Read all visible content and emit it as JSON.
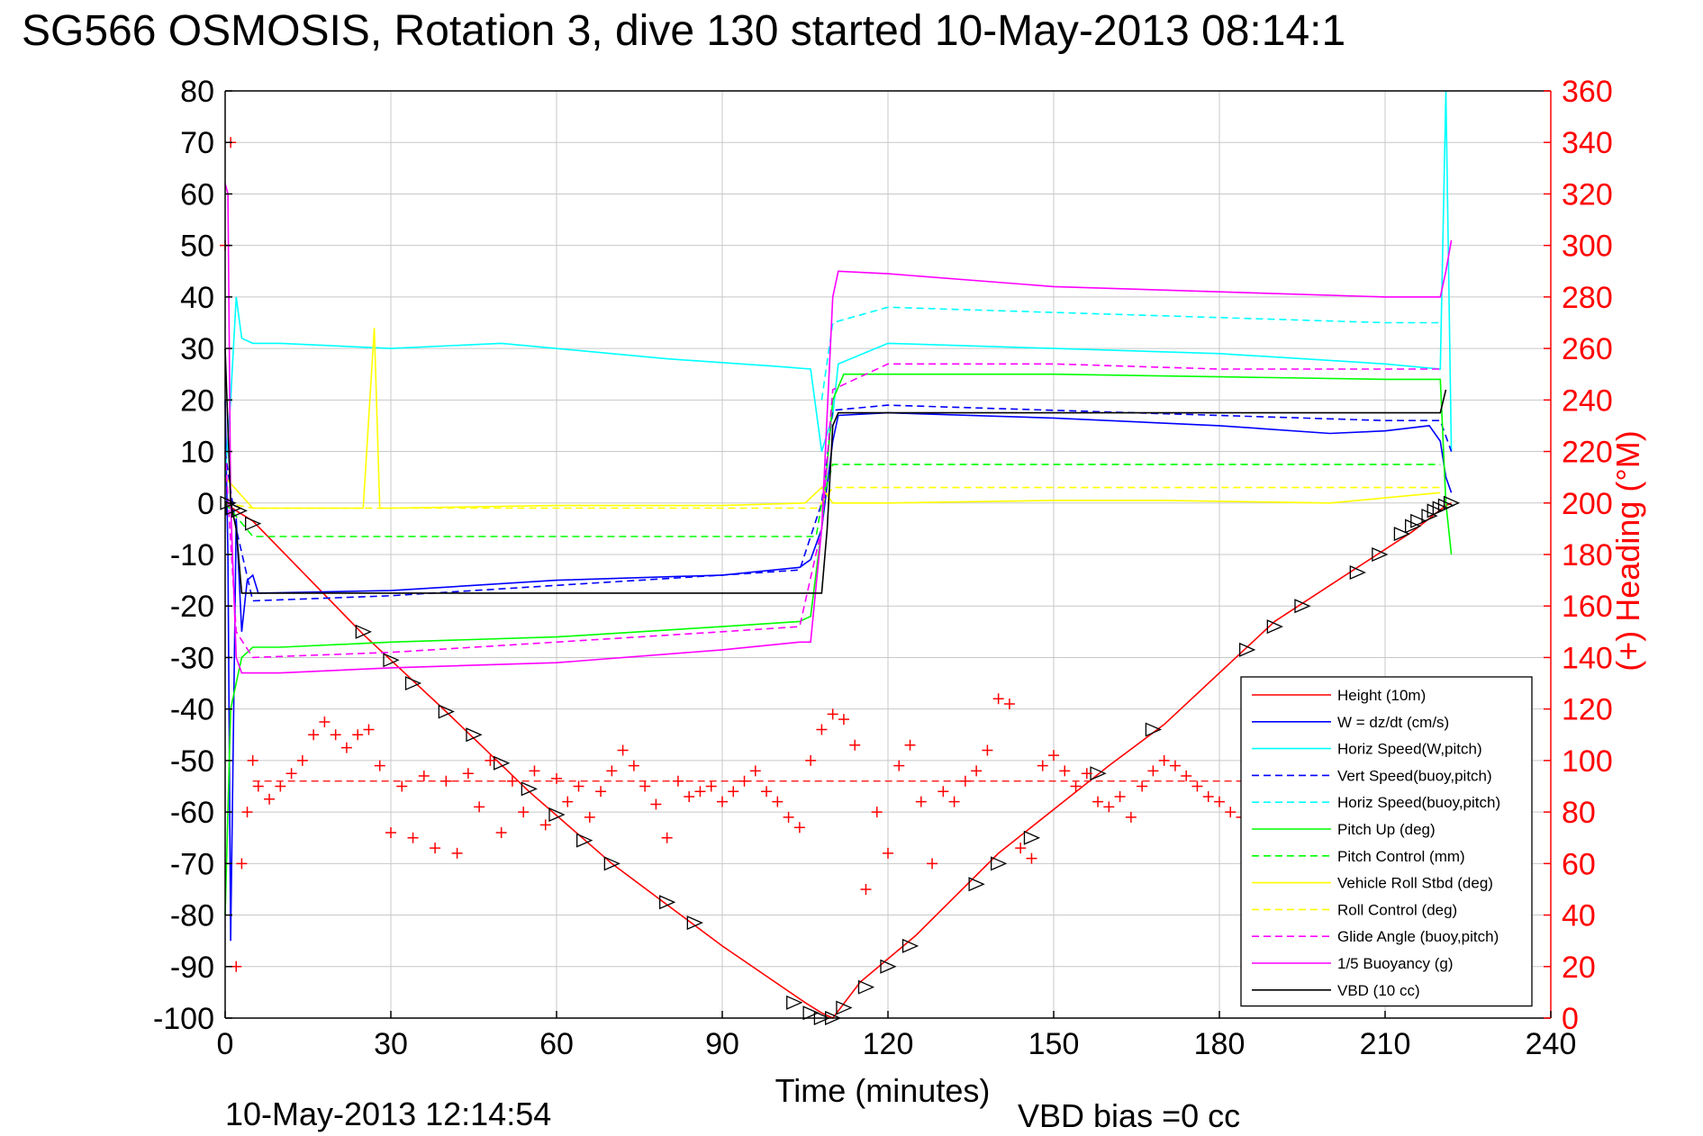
{
  "figure": {
    "title": "SG566 OSMOSIS, Rotation 3, dive 130 started 10-May-2013 08:14:1",
    "xlabel": "Time (minutes)",
    "ylabel_right": "(+) Heading (°M)",
    "footer_date": "10-May-2013 12:14:54",
    "footer_bias": "VBD bias =0 cc"
  },
  "chart_data": {
    "type": "line",
    "xlim": [
      0,
      240
    ],
    "ylim_left": [
      -100,
      80
    ],
    "ylim_right": [
      0,
      360
    ],
    "x_ticks": [
      "0",
      "30",
      "60",
      "90",
      "120",
      "150",
      "180",
      "210",
      "240"
    ],
    "y_ticks_left": [
      "80",
      "70",
      "60",
      "50",
      "40",
      "30",
      "20",
      "10",
      "0",
      "-10",
      "-20",
      "-30",
      "-40",
      "-50",
      "-60",
      "-70",
      "-80",
      "-90",
      "-100"
    ],
    "y_ticks_right": [
      "360",
      "340",
      "320",
      "300",
      "280",
      "260",
      "240",
      "220",
      "200",
      "180",
      "160",
      "140",
      "120",
      "100",
      "80",
      "60",
      "40",
      "20",
      "0"
    ],
    "grid": true,
    "legend_position": "bottom-right",
    "series": [
      {
        "name": "Height (10m)",
        "color": "#ff0000",
        "dash": "solid",
        "x": [
          0,
          2,
          5,
          25,
          30,
          40,
          55,
          70,
          90,
          105,
          108,
          110,
          115,
          125,
          140,
          160,
          170,
          190,
          205,
          215,
          221,
          222
        ],
        "y": [
          0,
          -1.5,
          -3.5,
          -25.5,
          -30.5,
          -40.5,
          -56,
          -70,
          -86,
          -97,
          -99,
          -100,
          -93,
          -84,
          -68,
          -51,
          -43,
          -23,
          -12.5,
          -5.5,
          -0.5,
          0
        ]
      },
      {
        "name": "W = dz/dt (cm/s)",
        "color": "#0000ff",
        "dash": "solid",
        "x": [
          0,
          0.5,
          1,
          2,
          3,
          4,
          5,
          6,
          30,
          60,
          90,
          104,
          106,
          108,
          110,
          111,
          120,
          150,
          180,
          200,
          210,
          218,
          220,
          221,
          222
        ],
        "y": [
          20,
          -10,
          -85,
          -3,
          -25,
          -15,
          -14,
          -17.5,
          -17,
          -15,
          -14,
          -12.5,
          -11,
          -5,
          12,
          17,
          17.5,
          16.5,
          15,
          13.5,
          14,
          15,
          12,
          5,
          2
        ]
      },
      {
        "name": "Horiz Speed(W,pitch)",
        "color": "#00ffff",
        "dash": "solid",
        "x": [
          0,
          1,
          2,
          3,
          5,
          10,
          30,
          50,
          80,
          100,
          106,
          108,
          110,
          111,
          120,
          150,
          180,
          210,
          220,
          221,
          222
        ],
        "y": [
          5,
          20,
          40,
          32,
          31,
          31,
          30,
          31,
          28,
          26.5,
          26,
          10,
          17,
          27,
          31,
          30,
          29,
          27,
          26,
          80,
          10
        ]
      },
      {
        "name": "Vert Speed(buoy,pitch)",
        "color": "#0000ff",
        "dash": "dash",
        "x": [
          0,
          2,
          5,
          30,
          60,
          90,
          104,
          108,
          110,
          120,
          150,
          180,
          210,
          220,
          222
        ],
        "y": [
          10,
          -5,
          -19,
          -18,
          -16,
          -14,
          -13,
          0,
          18,
          19,
          18,
          17,
          16,
          16,
          10
        ]
      },
      {
        "name": "Horiz Speed(buoy,pitch)",
        "color": "#00ffff",
        "dash": "dash",
        "x": [
          108,
          110,
          120,
          150,
          180,
          210,
          220
        ],
        "y": [
          20,
          35,
          38,
          37,
          36,
          35,
          35
        ]
      },
      {
        "name": "Pitch Up (deg)",
        "color": "#00ff00",
        "dash": "solid",
        "x": [
          0,
          1,
          3,
          5,
          10,
          30,
          60,
          90,
          104,
          106,
          108,
          110,
          112,
          120,
          150,
          180,
          210,
          220,
          221,
          222
        ],
        "y": [
          -80,
          -40,
          -30,
          -28,
          -28,
          -27,
          -26,
          -24,
          -23,
          -22,
          -5,
          20,
          25,
          25,
          25,
          24.5,
          24,
          24,
          0,
          -10
        ]
      },
      {
        "name": "Pitch Control (mm)",
        "color": "#00ff00",
        "dash": "dash",
        "x": [
          0,
          5,
          107,
          108,
          110,
          220
        ],
        "y": [
          0,
          -6.5,
          -6.5,
          0,
          7.5,
          7.5
        ]
      },
      {
        "name": "Vehicle Roll Stbd (deg)",
        "color": "#ffff00",
        "dash": "solid",
        "x": [
          0,
          5,
          25,
          27,
          28,
          30,
          60,
          90,
          105,
          108,
          110,
          112,
          120,
          150,
          170,
          200,
          210,
          220
        ],
        "y": [
          5,
          -1,
          -1,
          34,
          -1,
          -1,
          -0.5,
          -0.5,
          0,
          3,
          0,
          0,
          0,
          0.5,
          0.5,
          0,
          1,
          2
        ]
      },
      {
        "name": "Roll Control (deg)",
        "color": "#ffff00",
        "dash": "dash",
        "x": [
          0,
          5,
          107,
          108,
          110,
          220
        ],
        "y": [
          0,
          -1,
          -1,
          0,
          3,
          3
        ]
      },
      {
        "name": "Glide Angle (buoy,pitch)",
        "color": "#ff00ff",
        "dash": "dash",
        "x": [
          0,
          2,
          5,
          30,
          60,
          90,
          104,
          108,
          110,
          120,
          150,
          180,
          210,
          220
        ],
        "y": [
          10,
          -25,
          -30,
          -29,
          -27,
          -25,
          -24,
          -5,
          22,
          27,
          27,
          26,
          26,
          26
        ]
      },
      {
        "name": "1/5 Buoyancy (g)",
        "color": "#ff00ff",
        "dash": "solid",
        "x": [
          0,
          0.5,
          1,
          2,
          3,
          5,
          10,
          30,
          60,
          90,
          104,
          106,
          108,
          110,
          111,
          120,
          150,
          180,
          210,
          220,
          221,
          222
        ],
        "y": [
          62,
          60,
          0,
          -30,
          -33,
          -33,
          -33,
          -32,
          -31,
          -28.5,
          -27,
          -27,
          -5,
          40,
          45,
          44.5,
          42,
          41,
          40,
          40,
          45,
          51
        ]
      },
      {
        "name": "VBD (10 cc)",
        "color": "#000000",
        "dash": "solid",
        "x": [
          0,
          1,
          2,
          3,
          108,
          109,
          110,
          111,
          220,
          221
        ],
        "y": [
          30,
          0,
          -5,
          -17.5,
          -17.5,
          -5,
          15,
          17.5,
          17.5,
          22
        ]
      }
    ],
    "heading_series": {
      "name": "(+) Heading",
      "color": "#ff0000",
      "marker": "+",
      "axis": "right",
      "mean_heading": 92,
      "x": [
        0,
        1,
        2,
        3,
        4,
        5,
        6,
        8,
        10,
        12,
        14,
        16,
        18,
        20,
        22,
        24,
        26,
        28,
        30,
        32,
        34,
        36,
        38,
        40,
        42,
        44,
        46,
        48,
        50,
        52,
        54,
        56,
        58,
        60,
        62,
        64,
        66,
        68,
        70,
        72,
        74,
        76,
        78,
        80,
        82,
        84,
        86,
        88,
        90,
        92,
        94,
        96,
        98,
        100,
        102,
        104,
        106,
        108,
        110,
        112,
        114,
        116,
        118,
        120,
        122,
        124,
        126,
        128,
        130,
        132,
        134,
        136,
        138,
        140,
        142,
        144,
        146,
        148,
        150,
        152,
        154,
        156,
        158,
        160,
        162,
        164,
        166,
        168,
        170,
        172,
        174,
        176,
        178,
        180,
        182,
        184
      ],
      "y": [
        300,
        340,
        20,
        60,
        80,
        100,
        90,
        85,
        90,
        95,
        100,
        110,
        115,
        110,
        105,
        110,
        112,
        98,
        72,
        90,
        70,
        94,
        66,
        92,
        64,
        95,
        82,
        100,
        72,
        92,
        80,
        96,
        75,
        93,
        84,
        90,
        78,
        88,
        96,
        104,
        98,
        90,
        83,
        70,
        92,
        86,
        88,
        90,
        84,
        88,
        92,
        96,
        88,
        84,
        78,
        74,
        100,
        112,
        118,
        116,
        106,
        50,
        80,
        64,
        98,
        106,
        84,
        60,
        88,
        84,
        92,
        96,
        104,
        124,
        122,
        66,
        62,
        98,
        102,
        96,
        90,
        95,
        84,
        82,
        86,
        78,
        90,
        96,
        100,
        98,
        94,
        90,
        86,
        84,
        80,
        78
      ]
    },
    "height_markers": {
      "marker": "triangle",
      "color": "#000000",
      "x": [
        0.5,
        1.5,
        2.5,
        5,
        25,
        30,
        34,
        40,
        45,
        50,
        55,
        60,
        65,
        70,
        80,
        85,
        103,
        106,
        108,
        110,
        112,
        116,
        120,
        124,
        136,
        140,
        146,
        158,
        168,
        185,
        190,
        195,
        205,
        209,
        213,
        215,
        216,
        218,
        219,
        220,
        221,
        222
      ],
      "y": [
        0,
        -1,
        -1.5,
        -4,
        -25,
        -30.5,
        -35,
        -40.5,
        -45,
        -50.5,
        -55.5,
        -60.5,
        -65.5,
        -70,
        -77.5,
        -81.5,
        -97,
        -99,
        -100,
        -100,
        -98,
        -94,
        -90,
        -86,
        -74,
        -70,
        -65,
        -52.5,
        -44,
        -28.5,
        -24,
        -20,
        -13.5,
        -10,
        -6,
        -4.5,
        -3.5,
        -2.5,
        -1.5,
        -1,
        -0.5,
        0
      ]
    }
  }
}
